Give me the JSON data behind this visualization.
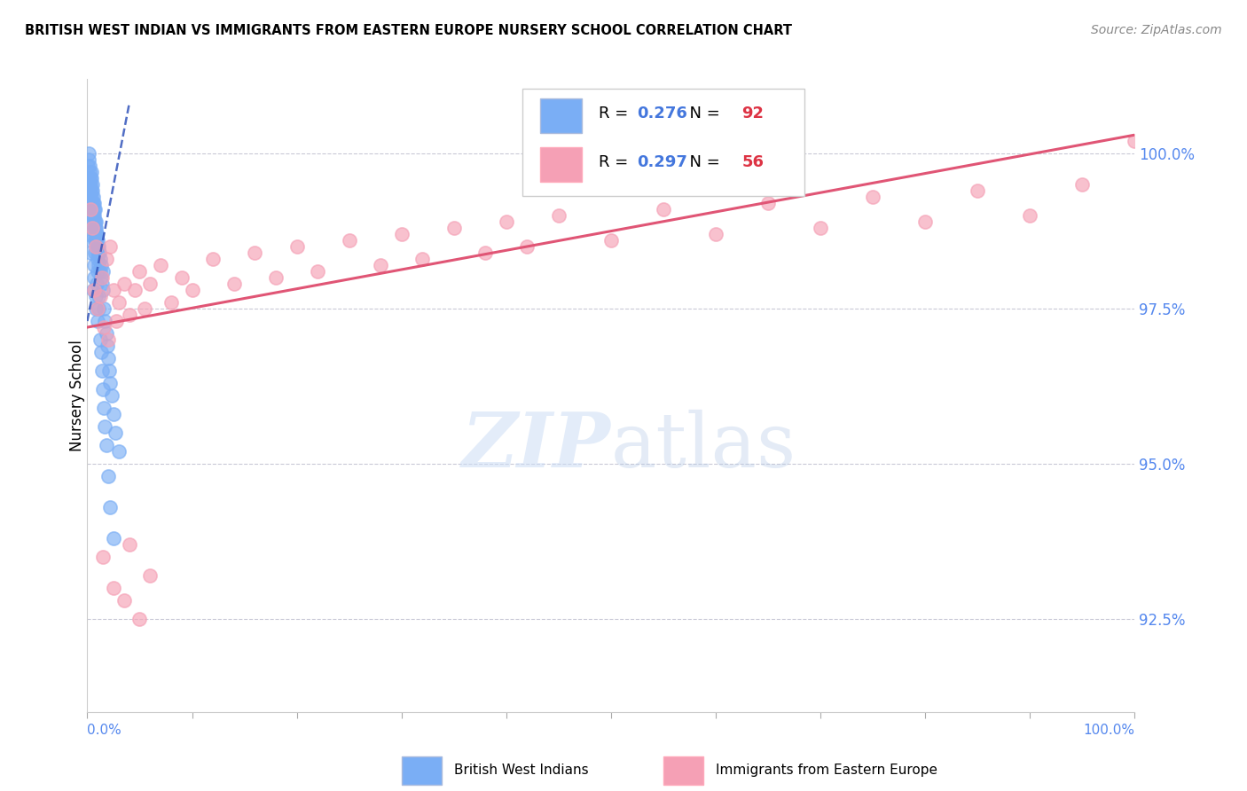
{
  "title": "BRITISH WEST INDIAN VS IMMIGRANTS FROM EASTERN EUROPE NURSERY SCHOOL CORRELATION CHART",
  "source": "Source: ZipAtlas.com",
  "ylabel": "Nursery School",
  "yticks": [
    92.5,
    95.0,
    97.5,
    100.0
  ],
  "ytick_labels": [
    "92.5%",
    "95.0%",
    "97.5%",
    "100.0%"
  ],
  "xmin": 0.0,
  "xmax": 100.0,
  "ymin": 91.0,
  "ymax": 101.2,
  "blue_R": 0.276,
  "blue_N": 92,
  "pink_R": 0.297,
  "pink_N": 56,
  "blue_color": "#7aaef5",
  "pink_color": "#f5a0b5",
  "blue_trend_color": "#3355bb",
  "pink_trend_color": "#e05575",
  "grid_color": "#cccccc",
  "blue_trend_x0": 0.0,
  "blue_trend_y0": 97.3,
  "blue_trend_x1": 4.0,
  "blue_trend_y1": 100.8,
  "pink_trend_x0": 0.0,
  "pink_trend_y0": 97.2,
  "pink_trend_x1": 100.0,
  "pink_trend_y1": 100.3,
  "blue_scatter_x": [
    0.05,
    0.08,
    0.1,
    0.12,
    0.15,
    0.18,
    0.2,
    0.22,
    0.25,
    0.28,
    0.3,
    0.32,
    0.35,
    0.38,
    0.4,
    0.42,
    0.45,
    0.48,
    0.5,
    0.52,
    0.55,
    0.58,
    0.6,
    0.62,
    0.65,
    0.68,
    0.7,
    0.72,
    0.75,
    0.78,
    0.8,
    0.82,
    0.85,
    0.88,
    0.9,
    0.92,
    0.95,
    0.98,
    1.0,
    1.05,
    1.1,
    1.15,
    1.2,
    1.25,
    1.3,
    1.35,
    1.4,
    1.45,
    1.5,
    1.6,
    1.7,
    1.8,
    1.9,
    2.0,
    2.1,
    2.2,
    2.3,
    2.5,
    2.7,
    3.0,
    0.05,
    0.1,
    0.15,
    0.2,
    0.25,
    0.3,
    0.35,
    0.4,
    0.45,
    0.5,
    0.55,
    0.6,
    0.65,
    0.7,
    0.75,
    0.8,
    0.85,
    0.9,
    0.95,
    1.0,
    1.05,
    1.1,
    1.2,
    1.3,
    1.4,
    1.5,
    1.6,
    1.7,
    1.8,
    2.0,
    2.2,
    2.5
  ],
  "blue_scatter_y": [
    99.5,
    99.8,
    100.0,
    99.6,
    99.9,
    99.7,
    99.4,
    99.3,
    99.8,
    99.6,
    99.5,
    99.2,
    99.7,
    99.4,
    99.6,
    99.3,
    99.5,
    99.1,
    99.4,
    99.2,
    99.0,
    99.3,
    99.1,
    98.9,
    99.2,
    99.0,
    98.8,
    99.1,
    98.9,
    98.7,
    98.8,
    98.6,
    98.9,
    98.7,
    98.5,
    98.7,
    98.4,
    98.6,
    98.3,
    98.5,
    98.2,
    98.4,
    98.1,
    98.3,
    98.0,
    98.2,
    97.9,
    98.1,
    97.8,
    97.5,
    97.3,
    97.1,
    96.9,
    96.7,
    96.5,
    96.3,
    96.1,
    95.8,
    95.5,
    95.2,
    98.7,
    98.9,
    99.1,
    99.3,
    99.5,
    98.4,
    98.6,
    98.8,
    99.0,
    99.2,
    97.8,
    98.0,
    98.2,
    98.4,
    98.6,
    97.5,
    97.7,
    97.9,
    98.1,
    97.3,
    97.5,
    97.7,
    97.0,
    96.8,
    96.5,
    96.2,
    95.9,
    95.6,
    95.3,
    94.8,
    94.3,
    93.8
  ],
  "pink_scatter_x": [
    0.3,
    0.5,
    0.6,
    0.8,
    1.0,
    1.2,
    1.4,
    1.6,
    1.8,
    2.0,
    2.2,
    2.5,
    2.8,
    3.0,
    3.5,
    4.0,
    4.5,
    5.0,
    5.5,
    6.0,
    7.0,
    8.0,
    9.0,
    10.0,
    12.0,
    14.0,
    16.0,
    18.0,
    20.0,
    22.0,
    25.0,
    28.0,
    30.0,
    32.0,
    35.0,
    38.0,
    40.0,
    42.0,
    45.0,
    50.0,
    55.0,
    60.0,
    65.0,
    70.0,
    75.0,
    80.0,
    85.0,
    90.0,
    95.0,
    100.0,
    1.5,
    2.5,
    3.5,
    4.0,
    5.0,
    6.0
  ],
  "pink_scatter_y": [
    99.1,
    98.8,
    97.8,
    98.5,
    97.5,
    97.7,
    98.0,
    97.2,
    98.3,
    97.0,
    98.5,
    97.8,
    97.3,
    97.6,
    97.9,
    97.4,
    97.8,
    98.1,
    97.5,
    97.9,
    98.2,
    97.6,
    98.0,
    97.8,
    98.3,
    97.9,
    98.4,
    98.0,
    98.5,
    98.1,
    98.6,
    98.2,
    98.7,
    98.3,
    98.8,
    98.4,
    98.9,
    98.5,
    99.0,
    98.6,
    99.1,
    98.7,
    99.2,
    98.8,
    99.3,
    98.9,
    99.4,
    99.0,
    99.5,
    100.2,
    93.5,
    93.0,
    92.8,
    93.7,
    92.5,
    93.2
  ]
}
